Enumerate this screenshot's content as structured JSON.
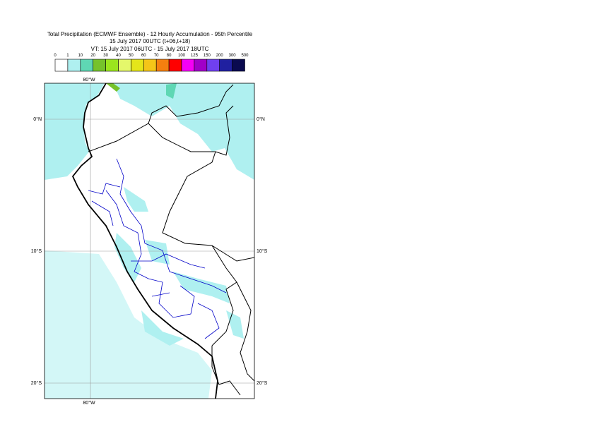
{
  "header": {
    "title": "Total Precipitation (ECMWF Ensemble) - 12 Hourly Accumulation - 95th Percentile",
    "base_time": "15 July 2017 00UTC (t+06,t+18)",
    "valid_time": "VT: 15 July 2017 06UTC - 15 July 2017 18UTC"
  },
  "legend": {
    "levels": [
      0,
      1,
      10,
      20,
      30,
      40,
      50,
      60,
      70,
      80,
      100,
      125,
      150,
      200,
      300,
      500
    ],
    "colors": [
      "#ffffff",
      "#aff0f0",
      "#5fd7b4",
      "#76c22b",
      "#9be51d",
      "#e4f76b",
      "#e5e51a",
      "#f5c518",
      "#f57f0f",
      "#ff0000",
      "#f500f5",
      "#a000c8",
      "#7040f0",
      "#2020a0",
      "#0a0a50"
    ]
  },
  "map": {
    "lon_labels": [
      "80°W"
    ],
    "lat_labels": [
      "0°N",
      "10°S",
      "20°S"
    ]
  }
}
